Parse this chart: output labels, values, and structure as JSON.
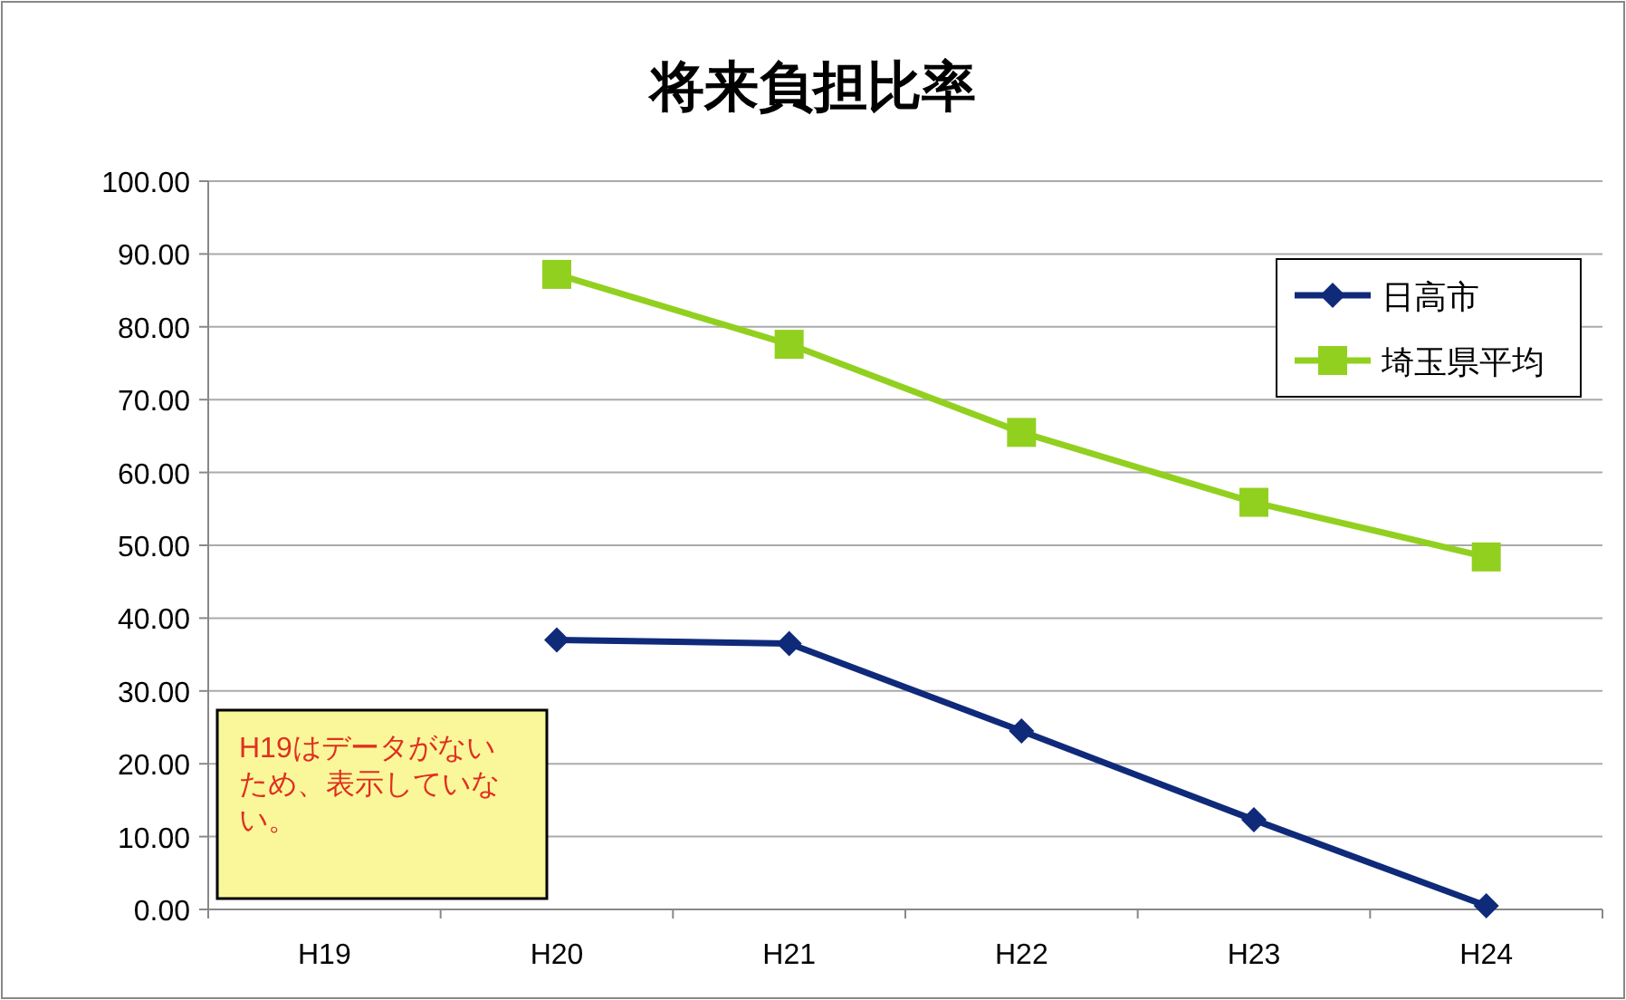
{
  "chart_data": {
    "type": "line",
    "title": "将来負担比率",
    "categories": [
      "H19",
      "H20",
      "H21",
      "H22",
      "H23",
      "H24"
    ],
    "series": [
      {
        "name": "日高市",
        "color": "#102a7a",
        "marker": "diamond",
        "values": [
          null,
          37.0,
          36.5,
          24.5,
          12.3,
          0.5
        ]
      },
      {
        "name": "埼玉県平均",
        "color": "#92d020",
        "marker": "square",
        "values": [
          null,
          87.2,
          77.6,
          65.5,
          55.9,
          48.4
        ]
      }
    ],
    "ylim": [
      0,
      100
    ],
    "yticks": [
      {
        "value": 0,
        "label": "0.00"
      },
      {
        "value": 10,
        "label": "10.00"
      },
      {
        "value": 20,
        "label": "20.00"
      },
      {
        "value": 30,
        "label": "30.00"
      },
      {
        "value": 40,
        "label": "40.00"
      },
      {
        "value": 50,
        "label": "50.00"
      },
      {
        "value": 60,
        "label": "60.00"
      },
      {
        "value": 70,
        "label": "70.00"
      },
      {
        "value": 80,
        "label": "80.00"
      },
      {
        "value": 90,
        "label": "90.00"
      },
      {
        "value": 100,
        "label": "100.00"
      }
    ],
    "grid": "y",
    "legend": "top right",
    "annotations": [
      "H19はデータがないため、表示していない。"
    ]
  }
}
